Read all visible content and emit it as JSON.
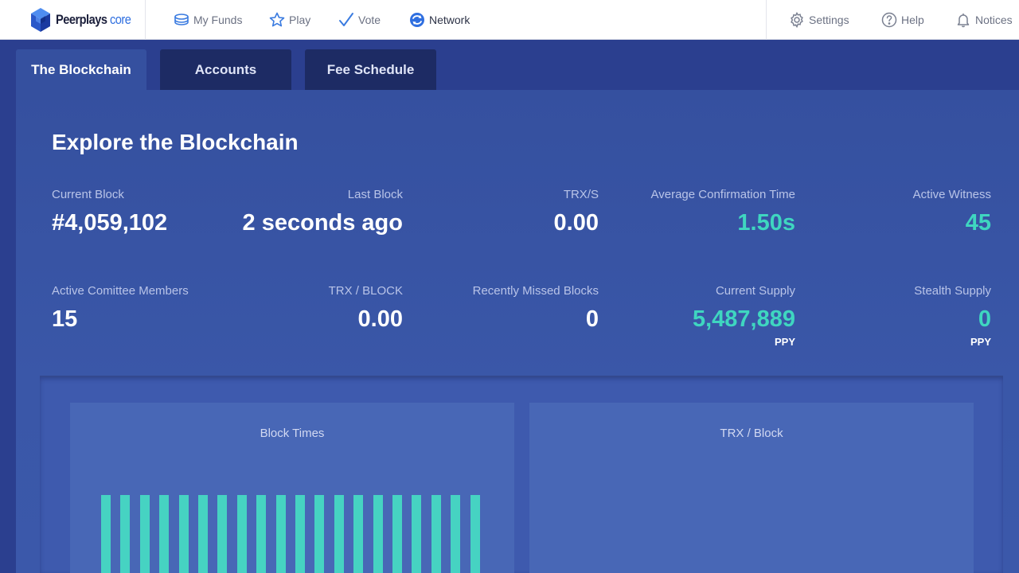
{
  "brand": {
    "name": "Peerplays",
    "suffix": "core"
  },
  "nav": {
    "left": [
      {
        "label": "My Funds",
        "icon": "coins-icon"
      },
      {
        "label": "Play",
        "icon": "star-icon"
      },
      {
        "label": "Vote",
        "icon": "checkmark-icon"
      },
      {
        "label": "Network",
        "icon": "network-icon",
        "active": true
      }
    ],
    "right": [
      {
        "label": "Settings",
        "icon": "gear-icon"
      },
      {
        "label": "Help",
        "icon": "question-icon"
      },
      {
        "label": "Notices",
        "icon": "bell-icon"
      }
    ]
  },
  "tabs": [
    {
      "label": "The Blockchain",
      "active": true
    },
    {
      "label": "Accounts",
      "active": false
    },
    {
      "label": "Fee Schedule",
      "active": false
    }
  ],
  "page_title": "Explore the Blockchain",
  "stats": {
    "current_block": {
      "label": "Current Block",
      "value": "#4,059,102"
    },
    "last_block": {
      "label": "Last Block",
      "value": "2 seconds ago"
    },
    "trx_s": {
      "label": "TRX/S",
      "value": "0.00"
    },
    "avg_confirmation": {
      "label": "Average Confirmation Time",
      "value": "1.50s"
    },
    "active_witness": {
      "label": "Active Witness",
      "value": "45"
    },
    "active_committee": {
      "label": "Active Comittee Members",
      "value": "15"
    },
    "trx_block": {
      "label": "TRX / BLOCK",
      "value": "0.00"
    },
    "missed_blocks": {
      "label": "Recently Missed Blocks",
      "value": "0"
    },
    "current_supply": {
      "label": "Current Supply",
      "value": "5,487,889",
      "unit": "PPY"
    },
    "stealth_supply": {
      "label": "Stealth Supply",
      "value": "0",
      "unit": "PPY"
    }
  },
  "colors": {
    "accent_teal": "#3fd6c0",
    "panel_blue": "#35509f",
    "tab_dark": "#1d2b64"
  },
  "charts": [
    {
      "title": "Block Times",
      "chart_data": {
        "type": "bar",
        "bar_count": 20,
        "values": [
          1,
          1,
          1,
          1,
          1,
          1,
          1,
          1,
          1,
          1,
          1,
          1,
          1,
          1,
          1,
          1,
          1,
          1,
          1,
          1
        ]
      }
    },
    {
      "title": "TRX / Block",
      "chart_data": {
        "type": "bar",
        "values": []
      }
    }
  ]
}
